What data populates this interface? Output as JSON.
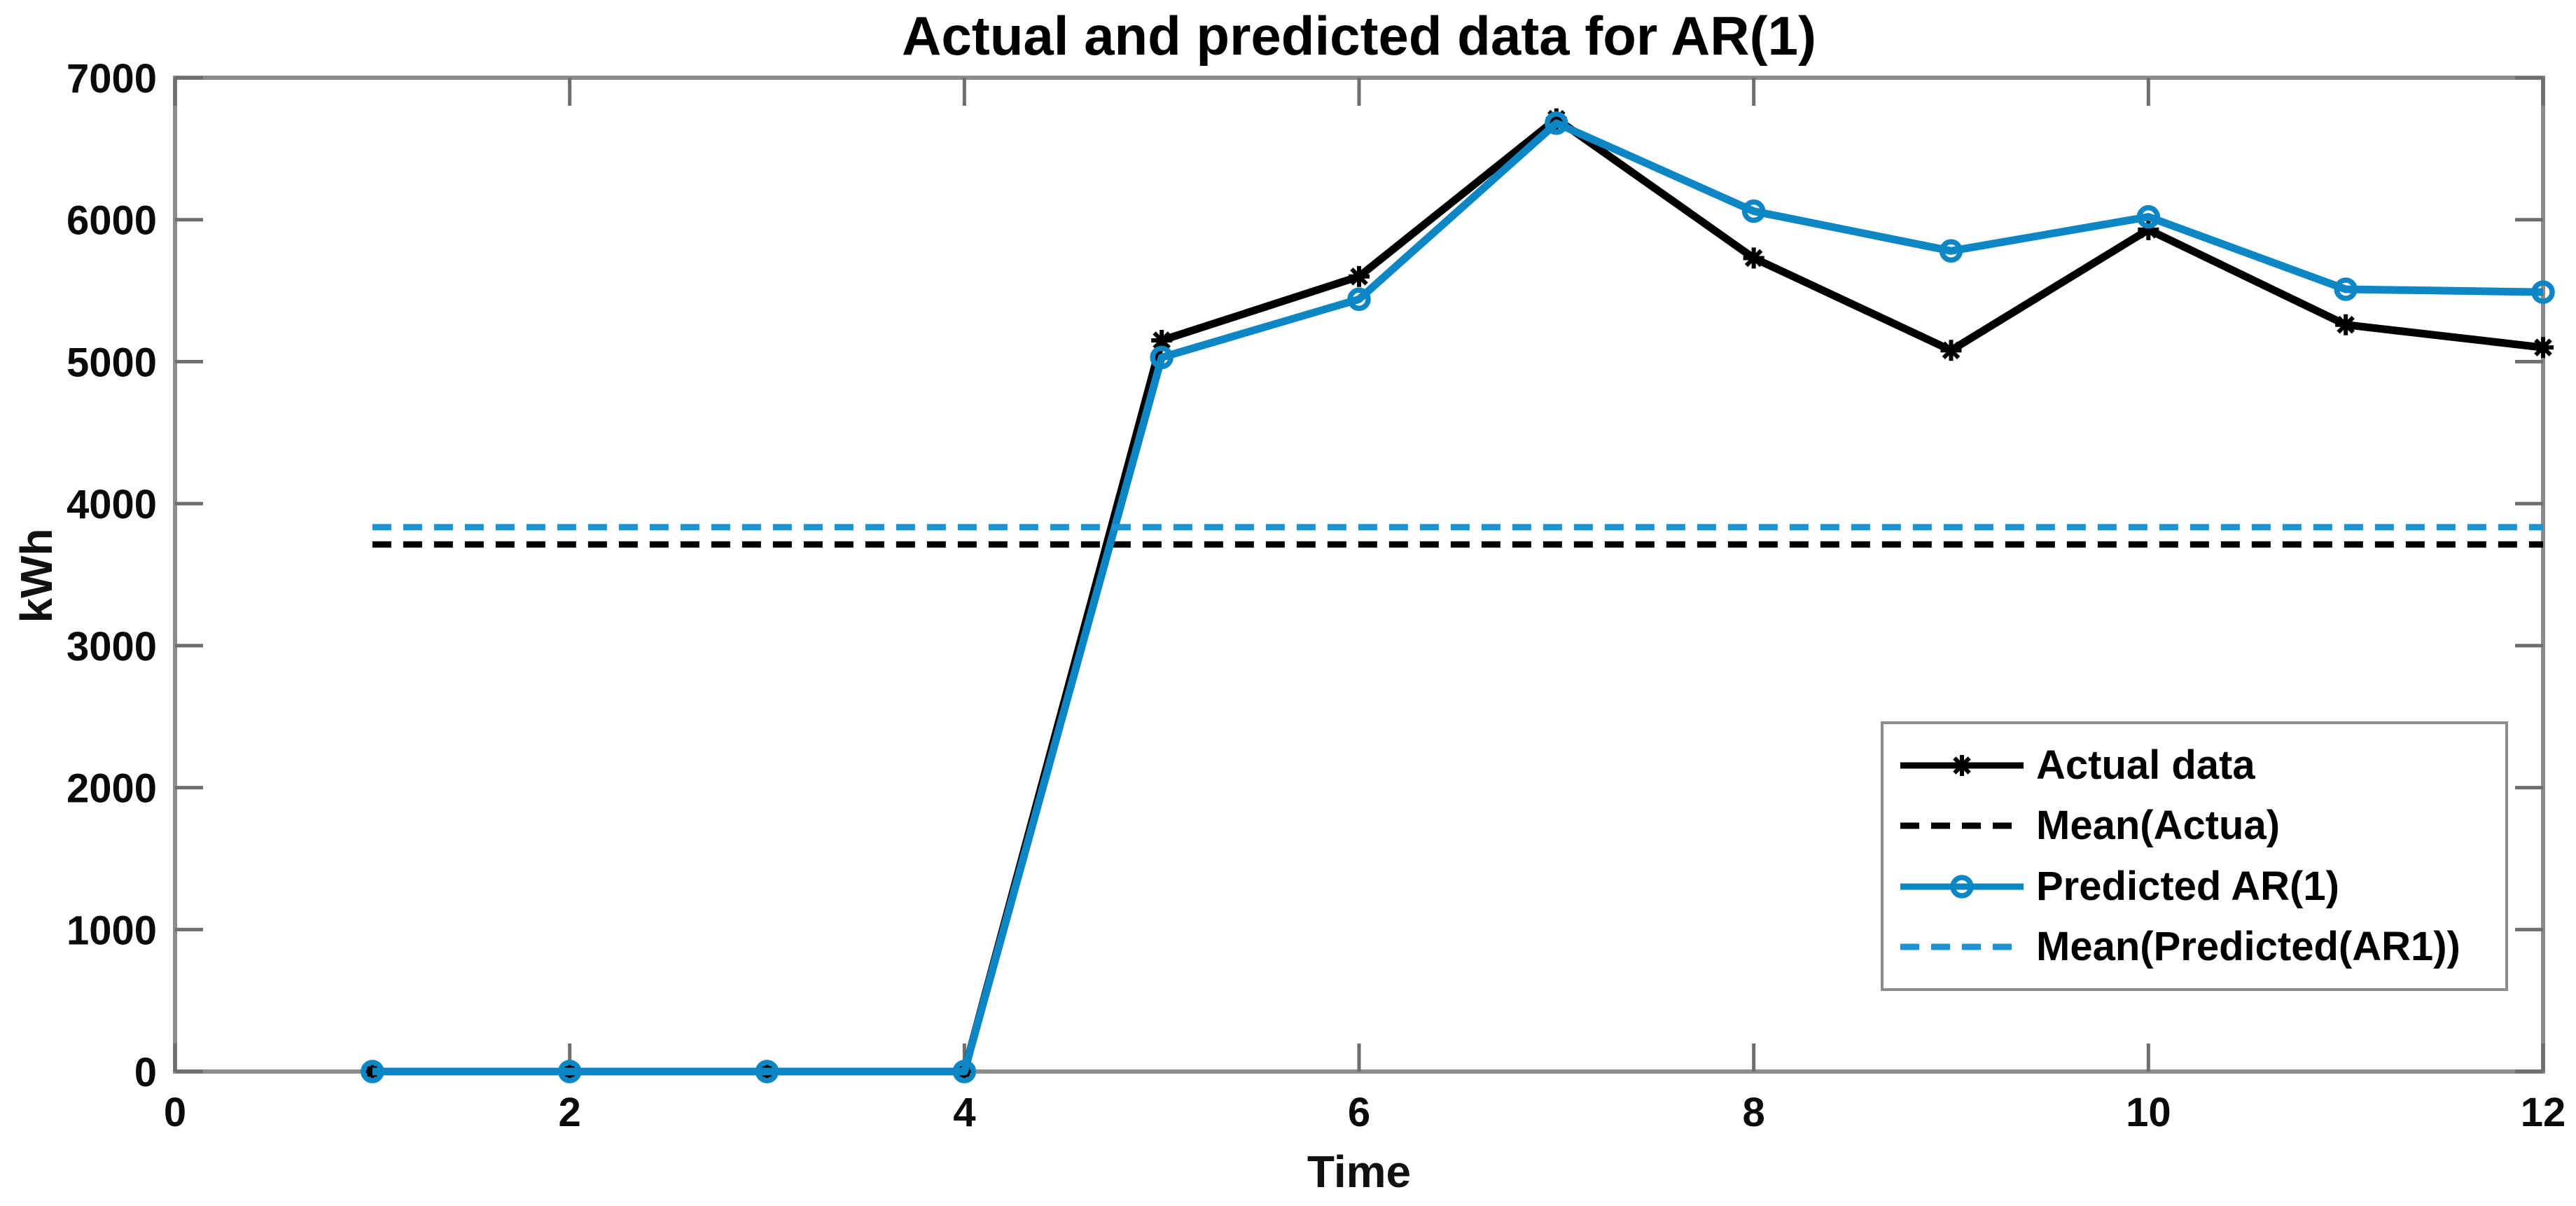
{
  "chart_data": {
    "type": "line",
    "title": "Actual and predicted data for AR(1)",
    "xlabel": "Time",
    "ylabel": "kWh",
    "xlim": [
      0,
      12
    ],
    "ylim": [
      0,
      7000
    ],
    "x_ticks": [
      0,
      2,
      4,
      6,
      8,
      10,
      12
    ],
    "y_ticks": [
      0,
      1000,
      2000,
      3000,
      4000,
      5000,
      6000,
      7000
    ],
    "grid": false,
    "legend_position": "inside-lower-right",
    "axis_box_color": "#8c8c8c",
    "tick_color": "#6e6e6e",
    "x": [
      1,
      2,
      3,
      4,
      5,
      6,
      7,
      8,
      9,
      10,
      11,
      12
    ],
    "series": [
      {
        "name": "Actual data",
        "kind": "line",
        "color": "#000000",
        "line_style": "solid",
        "marker": "asterisk",
        "values": [
          0,
          0,
          0,
          0,
          5150,
          5600,
          6710,
          5730,
          5080,
          5930,
          5260,
          5100
        ]
      },
      {
        "name": "Mean(Actua)",
        "kind": "hline",
        "color": "#000000",
        "line_style": "dashed",
        "marker": "none",
        "value": 3713,
        "x_start": 1,
        "x_end": 12
      },
      {
        "name": "Predicted AR(1)",
        "kind": "line",
        "color": "#0d86c6",
        "line_style": "solid",
        "marker": "circle",
        "values": [
          0,
          0,
          0,
          0,
          5030,
          5440,
          6680,
          6060,
          5780,
          6020,
          5510,
          5490
        ]
      },
      {
        "name": "Mean(Predicted(AR1))",
        "kind": "hline",
        "color": "#1d93d1",
        "line_style": "dashed",
        "marker": "none",
        "value": 3834,
        "x_start": 1,
        "x_end": 12
      }
    ]
  }
}
